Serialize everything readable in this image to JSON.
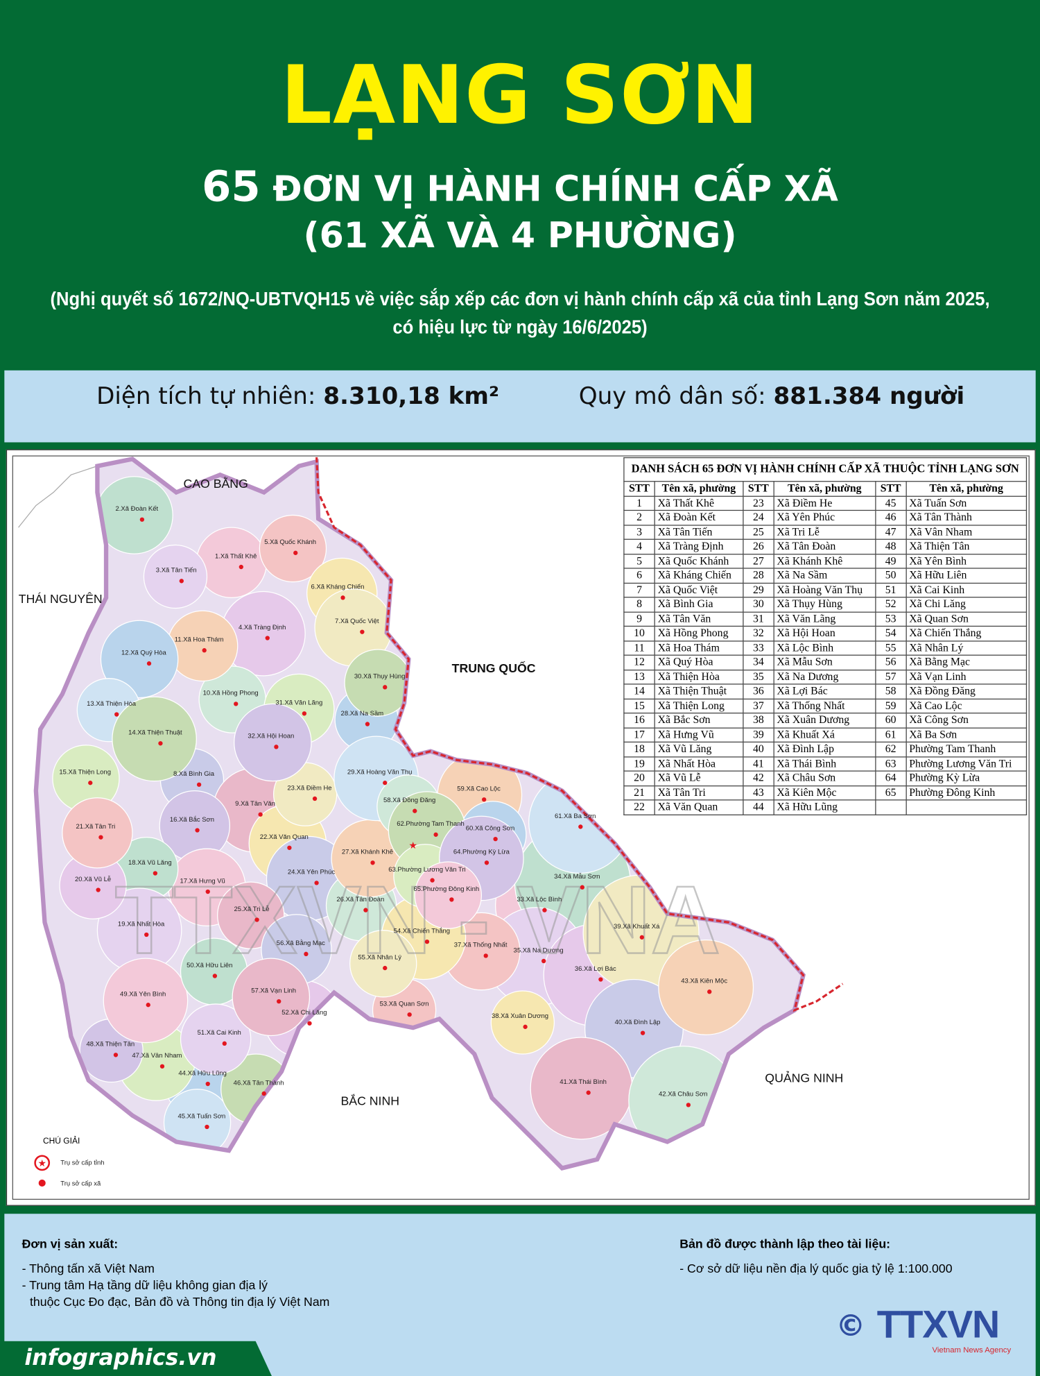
{
  "header": {
    "title": "LẠNG SƠN",
    "count": "65",
    "subtitle1": "ĐƠN VỊ HÀNH CHÍNH CẤP XÃ",
    "subtitle2": "(61 XÃ VÀ 4 PHƯỜNG)",
    "note1": "(Nghị quyết số 1672/NQ-UBTVQH15 về việc sắp xếp các đơn vị hành chính cấp xã của tỉnh Lạng Sơn năm 2025,",
    "note2": "có hiệu lực từ ngày 16/6/2025)"
  },
  "stats": {
    "area_label": "Diện tích tự nhiên: ",
    "area_value": "8.310,18 km²",
    "pop_label": "Quy mô dân số: ",
    "pop_value": "881.384 người"
  },
  "table": {
    "title": "DANH SÁCH 65 ĐƠN VỊ HÀNH CHÍNH CẤP XÃ THUỘC TỈNH LẠNG SƠN",
    "col_stt": "STT",
    "col_name": "Tên xã, phường",
    "items": [
      "Xã Thất Khê",
      "Xã Đoàn Kết",
      "Xã Tân Tiến",
      "Xã Tràng Định",
      "Xã Quốc Khánh",
      "Xã Kháng Chiến",
      "Xã Quốc Việt",
      "Xã Bình Gia",
      "Xã Tân Văn",
      "Xã Hồng Phong",
      "Xã Hoa Thám",
      "Xã Quý Hòa",
      "Xã Thiện Hòa",
      "Xã Thiện Thuật",
      "Xã Thiện Long",
      "Xã Bắc Sơn",
      "Xã Hưng Vũ",
      "Xã Vũ Lăng",
      "Xã Nhất Hòa",
      "Xã Vũ Lễ",
      "Xã Tân Tri",
      "Xã Văn Quan",
      "Xã Điềm He",
      "Xã Yên Phúc",
      "Xã Tri Lễ",
      "Xã Tân Đoàn",
      "Xã Khánh Khê",
      "Xã Na Sầm",
      "Xã Hoàng Văn Thụ",
      "Xã Thụy Hùng",
      "Xã Văn Lãng",
      "Xã Hội Hoan",
      "Xã Lộc Bình",
      "Xã Mẫu Sơn",
      "Xã Na Dương",
      "Xã Lợi Bác",
      "Xã Thống Nhất",
      "Xã Xuân Dương",
      "Xã Khuất Xá",
      "Xã Đình Lập",
      "Xã Thái Bình",
      "Xã Châu Sơn",
      "Xã Kiên Mộc",
      "Xã Hữu Lũng",
      "Xã Tuấn Sơn",
      "Xã Tân Thành",
      "Xã Vân Nham",
      "Xã Thiện Tân",
      "Xã Yên Bình",
      "Xã Hữu Liên",
      "Xã Cai Kinh",
      "Xã Chi Lăng",
      "Xã Quan Sơn",
      "Xã Chiến Thắng",
      "Xã Nhân Lý",
      "Xã Bằng Mạc",
      "Xã Vạn Linh",
      "Xã Đồng Đăng",
      "Xã Cao Lộc",
      "Xã Công Sơn",
      "Xã Ba Sơn",
      "Phường Tam Thanh",
      "Phường Lương Văn Tri",
      "Phường Kỳ Lừa",
      "Phường Đông Kinh"
    ]
  },
  "map": {
    "regions": [
      "CAO BẰNG",
      "THÁI NGUYÊN",
      "TRUNG QUỐC",
      "QUẢNG NINH",
      "BẮC NINH"
    ],
    "labels": [
      "1.Xã Thất Khê",
      "2.Xã Đoàn Kết",
      "3.Xã Tân Tiến",
      "4.Xã Tràng Định",
      "5.Xã Quốc Khánh",
      "6.Xã Kháng Chiến",
      "7.Xã Quốc Việt",
      "8.Xã Bình Gia",
      "9.Xã Tân Văn",
      "10.Xã Hồng Phong",
      "11.Xã Hoa Thám",
      "12.Xã Quý Hòa",
      "13.Xã Thiện Hòa",
      "14.Xã Thiện Thuật",
      "15.Xã Thiện Long",
      "16.Xã Bắc Sơn",
      "17.Xã Hưng Vũ",
      "18.Xã Vũ Lăng",
      "19.Xã Nhất Hòa",
      "20.Xã Vũ Lễ",
      "21.Xã Tân Tri",
      "22.Xã Văn Quan",
      "23.Xã Điềm He",
      "24.Xã Yên Phúc",
      "25.Xã Tri Lễ",
      "26.Xã Tân Đoàn",
      "27.Xã Khánh Khê",
      "28.Xã Na Sầm",
      "29.Xã Hoàng Văn Thụ",
      "30.Xã Thụy Hùng",
      "31.Xã Văn Lãng",
      "32.Xã Hội Hoan",
      "33.Xã Lộc Bình",
      "34.Xã Mẫu Sơn",
      "35.Xã Na Dương",
      "36.Xã Lợi Bác",
      "37.Xã Thống Nhất",
      "38.Xã Xuân Dương",
      "39.Xã Khuất Xá",
      "40.Xã Đình Lập",
      "41.Xã Thái Bình",
      "42.Xã Châu Sơn",
      "43.Xã Kiên Mộc",
      "44.Xã Hữu Lũng",
      "45.Xã Tuấn Sơn",
      "46.Xã Tân Thành",
      "47.Xã Vân Nham",
      "48.Xã Thiện Tân",
      "49.Xã Yên Bình",
      "50.Xã Hữu Liên",
      "51.Xã Cai Kinh",
      "52.Xã Chi Lăng",
      "53.Xã Quan Sơn",
      "54.Xã Chiến Thắng",
      "55.Xã Nhân Lý",
      "56.Xã Bằng Mạc",
      "57.Xã Vạn Linh",
      "58.Xã Đồng Đăng",
      "59.Xã Cao Lộc",
      "60.Xã Công Sơn",
      "61.Xã Ba Sơn",
      "62.Phường Tam Thanh",
      "63.Phường Lương Văn Tri",
      "64.Phường Kỳ Lừa",
      "65.Phường Đông Kinh"
    ],
    "legend": {
      "title": "CHÚ GIẢI",
      "province_hq": "Trụ sở cấp tỉnh",
      "commune_hq": "Trụ sở cấp xã"
    },
    "colors": {
      "border": "#d7262e",
      "outline": "#b98fc4",
      "hq_dot": "#e3161f"
    },
    "watermark": "TTXVN - VNA"
  },
  "footer": {
    "producer_title": "Đơn vị sản xuất:",
    "producer1": "- Thông tấn xã Việt Nam",
    "producer2": "- Trung tâm Hạ tầng dữ liệu không gian địa lý",
    "producer3": "thuộc Cục Đo đạc, Bản đồ và Thông tin địa lý Việt Nam",
    "source_title": "Bản đồ được thành lập theo tài liệu:",
    "source1": "- Cơ sở dữ liệu nền địa lý quốc gia tỷ lệ 1:100.000",
    "logo": "TTXVN",
    "logo_sub": "Vietnam News Agency",
    "copyright": "©",
    "brand": "infographics.vn"
  },
  "colors": {
    "green": "#036b34",
    "yellow": "#fff200",
    "light_blue": "#bcdcf1"
  }
}
